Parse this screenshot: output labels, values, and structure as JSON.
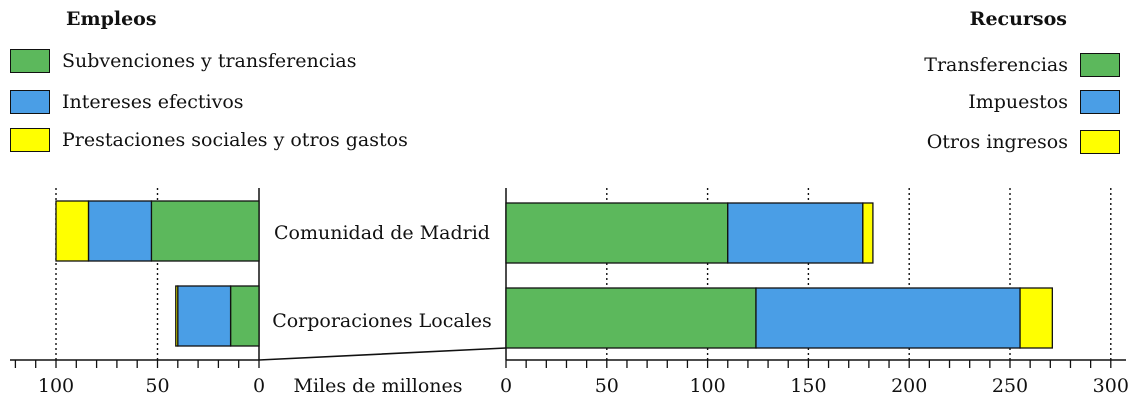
{
  "colors": {
    "green": "#5cb85c",
    "blue": "#4a9ee6",
    "yellow": "#ffff00",
    "ink": "#111111"
  },
  "chart_data": {
    "type": "bar",
    "orientation": "horizontal",
    "categories": [
      "Comunidad de Madrid",
      "Corporaciones Locales"
    ],
    "axis_label": "Miles de millones",
    "empleos": {
      "title": "Empleos",
      "xlim": [
        0,
        100
      ],
      "direction": "reversed",
      "tick_labels": [
        "100",
        "50",
        "0"
      ],
      "series": [
        {
          "name": "Subvenciones y transferencias",
          "color": "#5cb85c",
          "values": [
            53,
            14
          ]
        },
        {
          "name": "Intereses efectivos",
          "color": "#4a9ee6",
          "values": [
            31,
            26
          ]
        },
        {
          "name": "Prestaciones sociales y otros gastos",
          "color": "#ffff00",
          "values": [
            16,
            1
          ]
        }
      ]
    },
    "recursos": {
      "title": "Recursos",
      "xlim": [
        0,
        300
      ],
      "tick_labels": [
        "0",
        "50",
        "100",
        "150",
        "200",
        "250",
        "300"
      ],
      "series": [
        {
          "name": "Transferencias",
          "color": "#5cb85c",
          "values": [
            110,
            124
          ]
        },
        {
          "name": "Impuestos",
          "color": "#4a9ee6",
          "values": [
            67,
            131
          ]
        },
        {
          "name": "Otros ingresos",
          "color": "#ffff00",
          "values": [
            5,
            16
          ]
        }
      ]
    },
    "grid": "dotted vertical"
  }
}
